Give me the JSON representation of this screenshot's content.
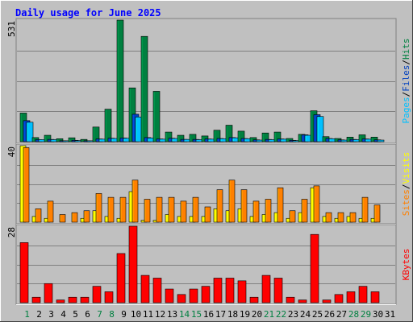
{
  "chart_data": {
    "type": "bar",
    "title": "Daily usage for June 2025",
    "days": [
      "1",
      "2",
      "3",
      "4",
      "5",
      "6",
      "7",
      "8",
      "9",
      "10",
      "11",
      "12",
      "13",
      "14",
      "15",
      "16",
      "17",
      "18",
      "19",
      "20",
      "21",
      "22",
      "23",
      "24",
      "25",
      "26",
      "27",
      "28",
      "29",
      "30",
      "31"
    ],
    "weekend_days": [
      1,
      7,
      8,
      14,
      15,
      21,
      22,
      28,
      29
    ],
    "panels": [
      {
        "id": "hits",
        "ymax": 531,
        "ymax_label": "531",
        "axis_label": [
          "Pages",
          "/",
          "Files",
          "/",
          "Hits"
        ],
        "axis_label_colors": [
          "#00c0ff",
          "#000000",
          "#0040c0",
          "#000000",
          "#008040"
        ],
        "series": [
          {
            "name": "Hits",
            "color": "#008040",
            "values": [
              125,
              18,
              28,
              13,
              17,
              10,
              64,
              142,
              531,
              235,
              460,
              220,
              42,
              28,
              32,
              25,
              50,
              72,
              46,
              18,
              38,
              42,
              14,
              32,
              135,
              22,
              14,
              20,
              30,
              20,
              null
            ]
          },
          {
            "name": "Files",
            "color": "#0040c0",
            "values": [
              92,
              9,
              10,
              4,
              6,
              4,
              12,
              15,
              16,
              120,
              18,
              12,
              15,
              10,
              10,
              12,
              14,
              18,
              14,
              8,
              10,
              12,
              6,
              30,
              118,
              14,
              8,
              10,
              12,
              8,
              null
            ]
          },
          {
            "name": "Pages",
            "color": "#00c0ff",
            "values": [
              85,
              9,
              9,
              4,
              5,
              4,
              11,
              14,
              15,
              108,
              16,
              11,
              14,
              10,
              9,
              11,
              13,
              17,
              13,
              7,
              9,
              11,
              5,
              28,
              110,
              13,
              7,
              9,
              11,
              7,
              null
            ]
          }
        ]
      },
      {
        "id": "visits",
        "ymax": 40,
        "ymax_label": "40",
        "axis_label": [
          "Sites",
          "/",
          "Visits"
        ],
        "axis_label_colors": [
          "#ff8000",
          "#000000",
          "#ffff00"
        ],
        "series": [
          {
            "name": "Visits",
            "color": "#ffff00",
            "values": [
              40,
              3,
              2,
              0,
              0,
              2,
              6,
              3,
              2,
              16,
              1,
              1,
              4,
              3,
              3,
              3,
              7,
              6,
              7,
              3,
              4,
              5,
              2,
              5,
              18,
              3,
              2,
              3,
              2,
              2,
              null
            ]
          },
          {
            "name": "Sites",
            "color": "#ff8000",
            "values": [
              39,
              7,
              11,
              4,
              5,
              6,
              15,
              13,
              13,
              22,
              12,
              13,
              13,
              11,
              13,
              8,
              17,
              22,
              17,
              11,
              12,
              18,
              6,
              12,
              19,
              5,
              5,
              5,
              13,
              9,
              null
            ]
          }
        ]
      },
      {
        "id": "kbytes",
        "ymax": 28,
        "ymax_label": "28",
        "axis_label": [
          "KBytes"
        ],
        "axis_label_colors": [
          "#ff0000"
        ],
        "series": [
          {
            "name": "KBytes",
            "color": "#ff0000",
            "values": [
              22,
              2,
              7,
              1,
              2,
              2,
              6,
              4,
              18,
              28,
              10,
              9,
              5,
              3,
              5,
              6,
              9,
              9,
              8,
              2,
              10,
              9,
              2,
              1,
              25,
              1,
              3,
              4,
              6,
              4,
              null
            ]
          }
        ]
      }
    ]
  }
}
